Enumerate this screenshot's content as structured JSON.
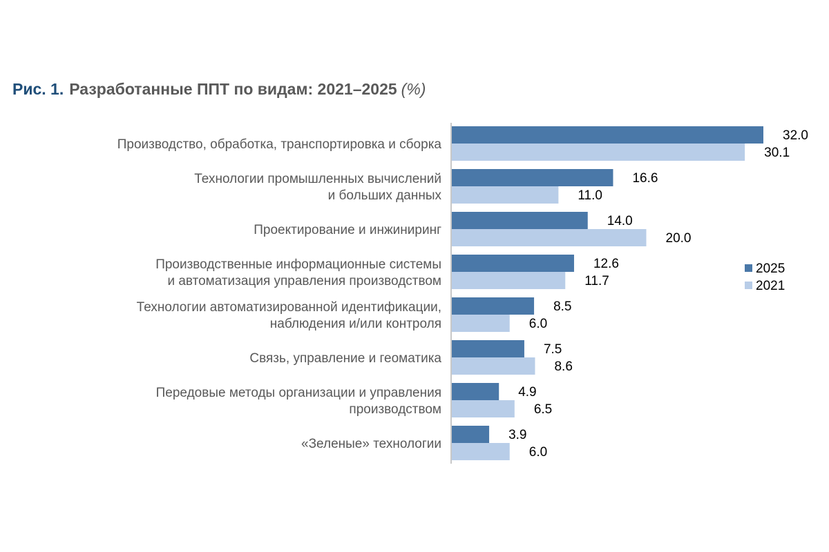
{
  "figure": {
    "number": "Рис. 1.",
    "title": "Разработанные ППТ по видам: 2021–2025",
    "unit": "(%)"
  },
  "chart_data": {
    "type": "bar",
    "orientation": "horizontal",
    "categories": [
      [
        "Производство, обработка, транспортировка и сборка"
      ],
      [
        "Технологии промышленных вычислений",
        "и больших данных"
      ],
      [
        "Проектирование и инжиниринг"
      ],
      [
        "Производственные информационные системы",
        "и автоматизация управления производством"
      ],
      [
        "Технологии автоматизированной идентификации,",
        "наблюдения и/или контроля"
      ],
      [
        "Связь, управление и геоматика"
      ],
      [
        "Передовые методы организации и управления",
        "производством"
      ],
      [
        "«Зеленые» технологии"
      ]
    ],
    "series": [
      {
        "name": "2025",
        "color": "#4a78a8",
        "values": [
          32.0,
          16.6,
          14.0,
          12.6,
          8.5,
          7.5,
          4.9,
          3.9
        ]
      },
      {
        "name": "2021",
        "color": "#b8cde8",
        "values": [
          30.1,
          11.0,
          20.0,
          11.7,
          6.0,
          8.6,
          6.5,
          6.0
        ]
      }
    ],
    "value_format": "1 decimal",
    "xlim": [
      0,
      32.0
    ],
    "grid": false,
    "legend_position": "right"
  }
}
